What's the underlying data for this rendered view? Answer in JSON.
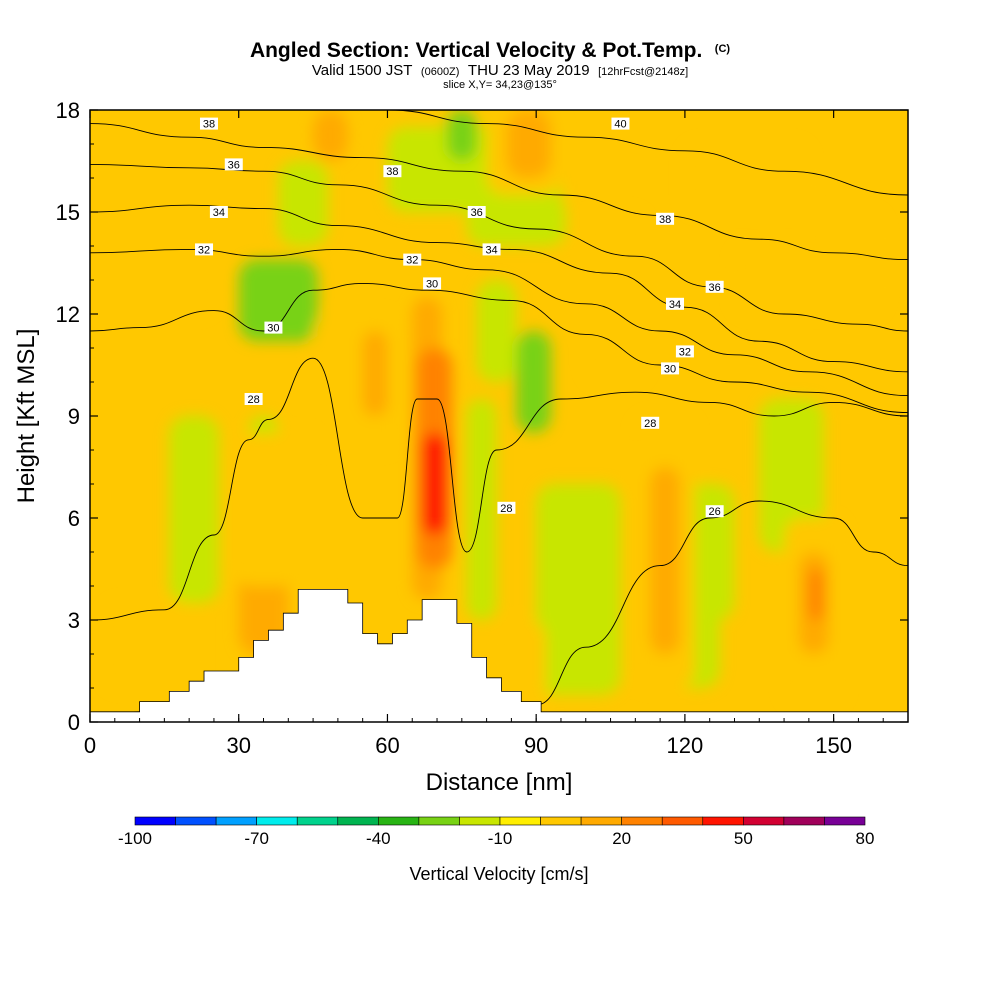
{
  "chart_data": {
    "type": "heatmap",
    "title": {
      "main": "Angled Section: Vertical Velocity & Pot.Temp.",
      "unit": "(C)",
      "valid_pre": "Valid 1500 JST",
      "valid_utc": "(0600Z)",
      "valid_post": "THU 23 May 2019",
      "forecast": "[12hrFcst@2148z]",
      "slice": "slice X,Y= 34,23@135°"
    },
    "xlabel": "Distance [nm]",
    "ylabel": "Height [Kft MSL]",
    "xlim": [
      0,
      165
    ],
    "ylim": [
      0,
      18
    ],
    "xticks": [
      "0",
      "30",
      "60",
      "90",
      "120",
      "150"
    ],
    "yticks": [
      "0",
      "3",
      "6",
      "9",
      "12",
      "15",
      "18"
    ],
    "colorbar": {
      "label": "Vertical Velocity [cm/s]",
      "tick_labels": [
        "-100",
        "-70",
        "-40",
        "-10",
        "20",
        "50",
        "80"
      ],
      "range": [
        -100,
        80
      ],
      "step": 10,
      "colors": [
        "#0000ff",
        "#0050ff",
        "#00a0ff",
        "#00ecec",
        "#00d28c",
        "#00b450",
        "#28b414",
        "#78d214",
        "#c8e600",
        "#ffee00",
        "#ffc800",
        "#ffaa00",
        "#ff8200",
        "#ff5a00",
        "#ff1400",
        "#d20032",
        "#a0005a",
        "#780096"
      ]
    },
    "terrain_profile": {
      "x": [
        0,
        10,
        10,
        16,
        16,
        20,
        20,
        23,
        23,
        30,
        30,
        33,
        33,
        36,
        36,
        39,
        39,
        42,
        42,
        52,
        52,
        55,
        55,
        58,
        58,
        61,
        61,
        64,
        64,
        67,
        67,
        74,
        74,
        77,
        77,
        80,
        80,
        83,
        83,
        87,
        87,
        91,
        91,
        165
      ],
      "y": [
        0.3,
        0.3,
        0.6,
        0.6,
        0.9,
        0.9,
        1.2,
        1.2,
        1.5,
        1.5,
        1.9,
        1.9,
        2.4,
        2.4,
        2.7,
        2.7,
        3.2,
        3.2,
        3.9,
        3.9,
        3.5,
        3.5,
        2.6,
        2.6,
        2.3,
        2.3,
        2.6,
        2.6,
        3.0,
        3.0,
        3.6,
        3.6,
        2.9,
        2.9,
        1.9,
        1.9,
        1.3,
        1.3,
        0.9,
        0.9,
        0.6,
        0.6,
        0.3,
        0.3
      ]
    },
    "velocity_cells": [
      {
        "x": [
          38,
          48
        ],
        "y": [
          14,
          16.5
        ],
        "v": -15
      },
      {
        "x": [
          30,
          46
        ],
        "y": [
          11.2,
          13.6
        ],
        "v": -25
      },
      {
        "x": [
          60,
          95
        ],
        "y": [
          15,
          17.5
        ],
        "v": -15
      },
      {
        "x": [
          76,
          96
        ],
        "y": [
          14,
          15.5
        ],
        "v": -12
      },
      {
        "x": [
          78,
          86
        ],
        "y": [
          10,
          13
        ],
        "v": -18
      },
      {
        "x": [
          86,
          93
        ],
        "y": [
          8.5,
          11.5
        ],
        "v": -25
      },
      {
        "x": [
          76,
          82
        ],
        "y": [
          3,
          9.5
        ],
        "v": -20
      },
      {
        "x": [
          20,
          25
        ],
        "y": [
          5,
          8
        ],
        "v": -30
      },
      {
        "x": [
          16,
          26
        ],
        "y": [
          3.5,
          9
        ],
        "v": -15
      },
      {
        "x": [
          92,
          105
        ],
        "y": [
          2,
          6
        ],
        "v": -30
      },
      {
        "x": [
          90,
          107
        ],
        "y": [
          0.8,
          7
        ],
        "v": -18
      },
      {
        "x": [
          112,
          130
        ],
        "y": [
          3,
          7
        ],
        "v": -12
      },
      {
        "x": [
          122,
          126
        ],
        "y": [
          2,
          3.5
        ],
        "v": -30
      },
      {
        "x": [
          117,
          127
        ],
        "y": [
          1,
          5
        ],
        "v": -18
      },
      {
        "x": [
          72,
          78
        ],
        "y": [
          16.5,
          18
        ],
        "v": -25
      },
      {
        "x": [
          135,
          148
        ],
        "y": [
          5,
          9.5
        ],
        "v": -12
      },
      {
        "x": [
          32,
          38
        ],
        "y": [
          8.2,
          9
        ],
        "v": -15
      },
      {
        "x": [
          3,
          22
        ],
        "y": [
          1,
          3.5
        ],
        "v": 5
      },
      {
        "x": [
          30,
          40
        ],
        "y": [
          2,
          7
        ],
        "v": 12
      },
      {
        "x": [
          29,
          47
        ],
        "y": [
          4,
          8.5
        ],
        "v": 5
      },
      {
        "x": [
          45,
          62
        ],
        "y": [
          8,
          12
        ],
        "v": 5
      },
      {
        "x": [
          55,
          60
        ],
        "y": [
          9,
          11.5
        ],
        "v": 12
      },
      {
        "x": [
          65,
          71
        ],
        "y": [
          3.6,
          12.5
        ],
        "v": 15
      },
      {
        "x": [
          66,
          73
        ],
        "y": [
          4.5,
          11
        ],
        "v": 28
      },
      {
        "x": [
          67,
          72
        ],
        "y": [
          5.5,
          8.5
        ],
        "v": 45
      },
      {
        "x": [
          80,
          95
        ],
        "y": [
          15.5,
          18
        ],
        "v": 5
      },
      {
        "x": [
          84,
          93
        ],
        "y": [
          16,
          18
        ],
        "v": 15
      },
      {
        "x": [
          84,
          92
        ],
        "y": [
          0.5,
          3
        ],
        "v": 5
      },
      {
        "x": [
          110,
          122
        ],
        "y": [
          1,
          9
        ],
        "v": 5
      },
      {
        "x": [
          113,
          119
        ],
        "y": [
          2,
          7.5
        ],
        "v": 15
      },
      {
        "x": [
          140,
          152
        ],
        "y": [
          0.5,
          6
        ],
        "v": 5
      },
      {
        "x": [
          143,
          149
        ],
        "y": [
          2,
          5
        ],
        "v": 15
      },
      {
        "x": [
          145,
          148
        ],
        "y": [
          3,
          4.5
        ],
        "v": 28
      },
      {
        "x": [
          120,
          145
        ],
        "y": [
          15,
          17
        ],
        "v": 5
      },
      {
        "x": [
          145,
          160
        ],
        "y": [
          12,
          15
        ],
        "v": 5
      },
      {
        "x": [
          0,
          25
        ],
        "y": [
          12,
          17
        ],
        "v": 5
      },
      {
        "x": [
          45,
          52
        ],
        "y": [
          16.5,
          18
        ],
        "v": 10
      },
      {
        "x": [
          100,
          112
        ],
        "y": [
          10,
          15
        ],
        "v": 5
      },
      {
        "x": [
          130,
          148
        ],
        "y": [
          12,
          14
        ],
        "v": 5
      }
    ],
    "isentropes": [
      {
        "label": "26",
        "points": [
          [
            0,
            0.2
          ],
          [
            10,
            0.3
          ],
          [
            25,
            0.5
          ],
          [
            40,
            0.8
          ],
          [
            90,
            0.5
          ],
          [
            100,
            2.2
          ],
          [
            115,
            4.6
          ],
          [
            125,
            6
          ],
          [
            135,
            6.5
          ],
          [
            150,
            6
          ],
          [
            158,
            5
          ],
          [
            165,
            4.6
          ]
        ],
        "label_at": [
          126,
          6.2
        ]
      },
      {
        "label": "28",
        "points": [
          [
            0,
            3
          ],
          [
            15,
            3.3
          ],
          [
            25,
            5.5
          ],
          [
            32,
            8.3
          ],
          [
            36,
            8.9
          ],
          [
            45,
            10.7
          ],
          [
            55,
            6
          ],
          [
            62,
            6
          ],
          [
            66,
            9.5
          ],
          [
            70,
            9.5
          ],
          [
            76,
            5
          ],
          [
            82,
            8
          ],
          [
            95,
            9.5
          ],
          [
            110,
            9.7
          ],
          [
            125,
            9.4
          ],
          [
            138,
            9
          ],
          [
            150,
            9.4
          ],
          [
            165,
            9
          ]
        ],
        "label_at": [
          115,
          8.8
        ]
      },
      {
        "label": "30",
        "points": [
          [
            0,
            11.5
          ],
          [
            10,
            11.6
          ],
          [
            25,
            12.1
          ],
          [
            35,
            11.5
          ],
          [
            45,
            12.7
          ],
          [
            55,
            12.9
          ],
          [
            68,
            12.7
          ],
          [
            85,
            12.4
          ],
          [
            100,
            11.4
          ],
          [
            115,
            10.5
          ],
          [
            130,
            10
          ],
          [
            145,
            9.7
          ],
          [
            165,
            9.1
          ]
        ],
        "label_at": [
          117,
          10.2
        ]
      },
      {
        "label": "32",
        "points": [
          [
            0,
            13.8
          ],
          [
            20,
            13.9
          ],
          [
            35,
            13.7
          ],
          [
            50,
            13.9
          ],
          [
            65,
            13.6
          ],
          [
            80,
            13.3
          ],
          [
            100,
            12.3
          ],
          [
            115,
            11.5
          ],
          [
            130,
            10.8
          ],
          [
            145,
            10.3
          ],
          [
            165,
            9.6
          ]
        ],
        "label_at": [
          123,
          11
        ]
      },
      {
        "label": "34",
        "points": [
          [
            0,
            15
          ],
          [
            20,
            15.2
          ],
          [
            35,
            15.1
          ],
          [
            50,
            14.6
          ],
          [
            70,
            14.1
          ],
          [
            85,
            13.9
          ],
          [
            105,
            13.2
          ],
          [
            120,
            12.2
          ],
          [
            135,
            11.2
          ],
          [
            150,
            10.6
          ],
          [
            165,
            10.3
          ]
        ],
        "label_at": [
          123,
          12.3
        ]
      },
      {
        "label": "36",
        "points": [
          [
            0,
            16.4
          ],
          [
            20,
            16.3
          ],
          [
            35,
            16.2
          ],
          [
            50,
            15.8
          ],
          [
            70,
            15.2
          ],
          [
            90,
            14.5
          ],
          [
            110,
            13.7
          ],
          [
            125,
            12.8
          ],
          [
            140,
            12
          ],
          [
            155,
            11.7
          ],
          [
            165,
            11.5
          ]
        ],
        "label_at": [
          126,
          12.8
        ]
      },
      {
        "label": "38",
        "points": [
          [
            0,
            17.6
          ],
          [
            20,
            17.2
          ],
          [
            35,
            16.9
          ],
          [
            55,
            16.6
          ],
          [
            75,
            16.2
          ],
          [
            95,
            15.5
          ],
          [
            115,
            14.9
          ],
          [
            135,
            14.2
          ],
          [
            150,
            13.8
          ],
          [
            165,
            13.6
          ]
        ],
        "label_at": [
          117,
          14.8
        ]
      },
      {
        "label": "40",
        "points": [
          [
            60,
            18
          ],
          [
            80,
            17.6
          ],
          [
            100,
            17.2
          ],
          [
            120,
            16.8
          ],
          [
            140,
            16.2
          ],
          [
            165,
            15.5
          ]
        ],
        "label_at": [
          108,
          17.6
        ]
      }
    ],
    "contour_labels": [
      {
        "text": "38",
        "x": 24,
        "y": 17.6
      },
      {
        "text": "36",
        "x": 29,
        "y": 16.4
      },
      {
        "text": "34",
        "x": 26,
        "y": 15
      },
      {
        "text": "32",
        "x": 23,
        "y": 13.9
      },
      {
        "text": "38",
        "x": 61,
        "y": 16.2
      },
      {
        "text": "36",
        "x": 78,
        "y": 15.0
      },
      {
        "text": "34",
        "x": 81,
        "y": 13.9
      },
      {
        "text": "32",
        "x": 65,
        "y": 13.6
      },
      {
        "text": "30",
        "x": 69,
        "y": 12.9
      },
      {
        "text": "30",
        "x": 37,
        "y": 11.6
      },
      {
        "text": "28",
        "x": 33,
        "y": 9.5
      },
      {
        "text": "28",
        "x": 84,
        "y": 6.3
      },
      {
        "text": "40",
        "x": 107,
        "y": 17.6
      },
      {
        "text": "38",
        "x": 116,
        "y": 14.8
      },
      {
        "text": "36",
        "x": 126,
        "y": 12.8
      },
      {
        "text": "34",
        "x": 118,
        "y": 12.3
      },
      {
        "text": "32",
        "x": 120,
        "y": 10.9
      },
      {
        "text": "30",
        "x": 117,
        "y": 10.4
      },
      {
        "text": "28",
        "x": 113,
        "y": 8.8
      },
      {
        "text": "26",
        "x": 126,
        "y": 6.2
      }
    ]
  }
}
